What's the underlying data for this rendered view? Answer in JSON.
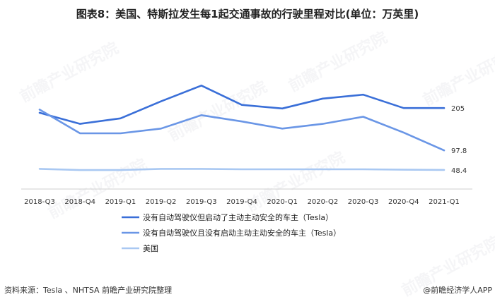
{
  "chart_data": {
    "type": "line",
    "title": "图表8：美国、特斯拉发生每1起交通事故的行驶里程对比(单位：万英里)",
    "categories": [
      "2018-Q3",
      "2018-Q4",
      "2019-Q1",
      "2019-Q2",
      "2019-Q3",
      "2019-Q4",
      "2020-Q1",
      "2020-Q2",
      "2020-Q3",
      "2020-Q4",
      "2021-Q1"
    ],
    "series": [
      {
        "name": "没有自动驾驶仪但启动了主动主动安全的车主（Tesla）",
        "color": "#3a6fd8",
        "values": [
          193,
          165,
          179,
          222,
          262,
          213,
          204,
          229,
          239,
          205,
          205
        ],
        "end_label": "205"
      },
      {
        "name": "没有自动驾驶仪且没有启动主动主动安全的车主（Tesla）",
        "color": "#6a96e6",
        "values": [
          201,
          141,
          141,
          153,
          187,
          171,
          153,
          165,
          183,
          143,
          97.8
        ],
        "end_label": "97.8"
      },
      {
        "name": "美国",
        "color": "#a9c8f2",
        "values": [
          51,
          48,
          48,
          51,
          51,
          50,
          50,
          50,
          50,
          49,
          48.4
        ],
        "end_label": "48.4"
      }
    ],
    "ylim": [
      0,
      300
    ],
    "grid": false,
    "legend_position": "bottom"
  },
  "footer": {
    "source": "资料来源：Tesla 、NHTSA 前瞻产业研究院整理",
    "brand": "@前瞻经济学人APP"
  },
  "watermark_text": "前瞻产业研究院"
}
